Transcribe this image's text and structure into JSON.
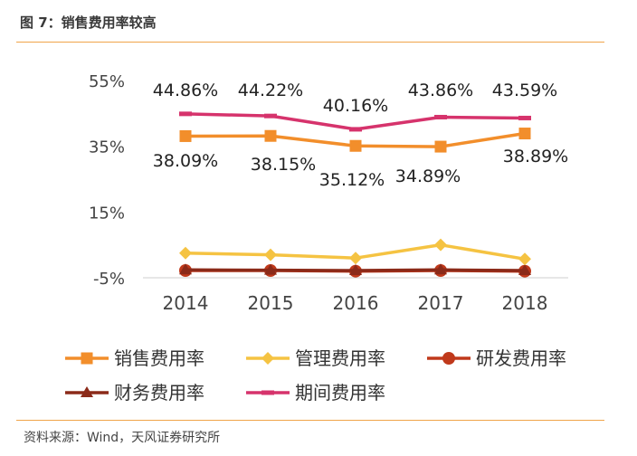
{
  "figure": {
    "title": "图 7：销售费用率较高",
    "source": "资料来源：Wind，天风证券研究所"
  },
  "chart_data": {
    "type": "line",
    "categories": [
      "2014",
      "2015",
      "2016",
      "2017",
      "2018"
    ],
    "y_ticks": [
      "55%",
      "35%",
      "15%",
      "-5%"
    ],
    "ylim": [
      -5,
      55
    ],
    "grid": false,
    "legend_position": "bottom",
    "series": [
      {
        "name": "销售费用率",
        "color": "#f28e2b",
        "marker": "square",
        "values": [
          38.09,
          38.15,
          35.12,
          34.89,
          38.89
        ],
        "labels": [
          "38.09%",
          "38.15%",
          "35.12%",
          "34.89%",
          "38.89%"
        ]
      },
      {
        "name": "管理费用率",
        "color": "#f5c342",
        "marker": "diamond",
        "values": [
          2.5,
          2.0,
          1.0,
          5.0,
          0.7
        ]
      },
      {
        "name": "研发费用率",
        "color": "#c0391b",
        "marker": "circle",
        "values": [
          -2.8,
          -2.8,
          -3.0,
          -2.8,
          -3.0
        ]
      },
      {
        "name": "财务费用率",
        "color": "#8b2a19",
        "marker": "triangle",
        "values": [
          -2.6,
          -2.7,
          -2.8,
          -2.6,
          -2.8
        ]
      },
      {
        "name": "期间费用率",
        "color": "#d6336c",
        "marker": "dash",
        "values": [
          44.86,
          44.22,
          40.16,
          43.86,
          43.59
        ],
        "labels": [
          "44.86%",
          "44.22%",
          "40.16%",
          "43.86%",
          "43.59%"
        ]
      }
    ]
  }
}
